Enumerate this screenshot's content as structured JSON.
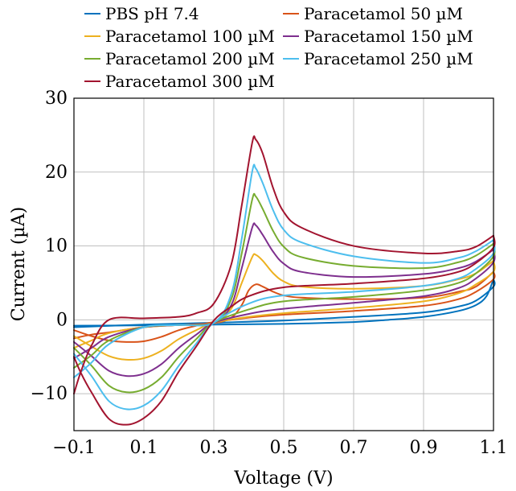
{
  "chart_data": {
    "type": "line",
    "title": "",
    "xlabel": "Voltage (V)",
    "ylabel": "Current (µA)",
    "xlim": [
      -0.1,
      1.1
    ],
    "ylim": [
      -15,
      30
    ],
    "x_ticks": [
      -0.1,
      0.1,
      0.3,
      0.5,
      0.7,
      0.9,
      1.1
    ],
    "x_tick_labels": [
      "−0.1",
      "0.1",
      "0.3",
      "0.5",
      "0.7",
      "0.9",
      "1.1"
    ],
    "y_ticks": [
      -10,
      0,
      10,
      20,
      30
    ],
    "y_tick_labels": [
      "−10",
      "0",
      "10",
      "20",
      "30"
    ],
    "grid": true,
    "legend_position": "top",
    "series": [
      {
        "name": "PBS pH 7.4",
        "color": "#0072BD",
        "forward": [
          [
            -0.1,
            -0.8
          ],
          [
            0.1,
            -0.75
          ],
          [
            0.3,
            -0.65
          ],
          [
            0.5,
            -0.55
          ],
          [
            0.7,
            -0.3
          ],
          [
            0.8,
            0.0
          ],
          [
            0.9,
            0.4
          ],
          [
            1.0,
            1.2
          ],
          [
            1.05,
            2.0
          ],
          [
            1.08,
            3.2
          ],
          [
            1.1,
            5.5
          ]
        ],
        "reverse": [
          [
            1.1,
            5.5
          ],
          [
            1.1,
            4.5
          ],
          [
            1.05,
            2.6
          ],
          [
            1.0,
            1.8
          ],
          [
            0.9,
            1.0
          ],
          [
            0.7,
            0.4
          ],
          [
            0.5,
            -0.1
          ],
          [
            0.3,
            -0.4
          ],
          [
            0.1,
            -0.65
          ],
          [
            -0.1,
            -1.0
          ]
        ]
      },
      {
        "name": "Paracetamol 50 µM",
        "color": "#D95319",
        "forward": [
          [
            -0.1,
            -2.5
          ],
          [
            -0.05,
            -2.0
          ],
          [
            0.0,
            -1.7
          ],
          [
            0.1,
            -1.0
          ],
          [
            0.2,
            -0.7
          ],
          [
            0.3,
            -0.45
          ],
          [
            0.35,
            0.3
          ],
          [
            0.38,
            2.0
          ],
          [
            0.4,
            4.0
          ],
          [
            0.42,
            4.8
          ],
          [
            0.44,
            4.5
          ],
          [
            0.47,
            3.8
          ],
          [
            0.5,
            3.3
          ],
          [
            0.55,
            3.0
          ],
          [
            0.7,
            2.8
          ],
          [
            0.9,
            3.0
          ],
          [
            1.0,
            3.8
          ],
          [
            1.05,
            4.5
          ],
          [
            1.1,
            6.5
          ]
        ],
        "reverse": [
          [
            1.1,
            6.5
          ],
          [
            1.1,
            5.5
          ],
          [
            1.05,
            3.8
          ],
          [
            1.0,
            2.8
          ],
          [
            0.9,
            1.9
          ],
          [
            0.7,
            1.2
          ],
          [
            0.5,
            0.7
          ],
          [
            0.4,
            0.3
          ],
          [
            0.3,
            -0.3
          ],
          [
            0.25,
            -0.8
          ],
          [
            0.2,
            -1.4
          ],
          [
            0.15,
            -2.3
          ],
          [
            0.1,
            -2.9
          ],
          [
            0.05,
            -3.0
          ],
          [
            0.0,
            -2.8
          ],
          [
            -0.05,
            -2.2
          ],
          [
            -0.1,
            -1.4
          ]
        ]
      },
      {
        "name": "Paracetamol 100 µM",
        "color": "#EDB120",
        "forward": [
          [
            -0.1,
            -3.8
          ],
          [
            -0.05,
            -2.8
          ],
          [
            0.0,
            -1.8
          ],
          [
            0.1,
            -1.0
          ],
          [
            0.2,
            -0.7
          ],
          [
            0.3,
            -0.4
          ],
          [
            0.35,
            1.5
          ],
          [
            0.38,
            5.0
          ],
          [
            0.41,
            8.5
          ],
          [
            0.42,
            8.8
          ],
          [
            0.44,
            8.0
          ],
          [
            0.47,
            6.3
          ],
          [
            0.5,
            5.2
          ],
          [
            0.55,
            4.5
          ],
          [
            0.7,
            4.2
          ],
          [
            0.9,
            4.6
          ],
          [
            1.0,
            5.5
          ],
          [
            1.05,
            6.3
          ],
          [
            1.1,
            8.0
          ]
        ],
        "reverse": [
          [
            1.1,
            8.0
          ],
          [
            1.1,
            6.5
          ],
          [
            1.05,
            4.8
          ],
          [
            1.0,
            3.6
          ],
          [
            0.9,
            2.5
          ],
          [
            0.7,
            1.6
          ],
          [
            0.5,
            0.9
          ],
          [
            0.4,
            0.4
          ],
          [
            0.3,
            -0.4
          ],
          [
            0.25,
            -1.4
          ],
          [
            0.2,
            -2.6
          ],
          [
            0.15,
            -4.2
          ],
          [
            0.1,
            -5.2
          ],
          [
            0.05,
            -5.4
          ],
          [
            0.0,
            -4.9
          ],
          [
            -0.05,
            -3.6
          ],
          [
            -0.1,
            -2.2
          ]
        ]
      },
      {
        "name": "Paracetamol 150 µM",
        "color": "#7E2F8E",
        "forward": [
          [
            -0.1,
            -5.2
          ],
          [
            -0.05,
            -3.8
          ],
          [
            0.0,
            -2.3
          ],
          [
            0.1,
            -1.0
          ],
          [
            0.2,
            -0.7
          ],
          [
            0.3,
            -0.4
          ],
          [
            0.35,
            2.0
          ],
          [
            0.38,
            7.0
          ],
          [
            0.41,
            12.5
          ],
          [
            0.42,
            12.8
          ],
          [
            0.44,
            11.5
          ],
          [
            0.47,
            9.2
          ],
          [
            0.5,
            7.6
          ],
          [
            0.55,
            6.5
          ],
          [
            0.7,
            5.8
          ],
          [
            0.9,
            6.2
          ],
          [
            1.0,
            7.0
          ],
          [
            1.05,
            7.9
          ],
          [
            1.1,
            9.5
          ]
        ],
        "reverse": [
          [
            1.1,
            9.5
          ],
          [
            1.1,
            7.8
          ],
          [
            1.05,
            5.6
          ],
          [
            1.0,
            4.3
          ],
          [
            0.9,
            3.2
          ],
          [
            0.7,
            2.3
          ],
          [
            0.5,
            1.5
          ],
          [
            0.4,
            0.8
          ],
          [
            0.3,
            -0.4
          ],
          [
            0.25,
            -2.0
          ],
          [
            0.2,
            -3.8
          ],
          [
            0.15,
            -6.0
          ],
          [
            0.1,
            -7.3
          ],
          [
            0.05,
            -7.6
          ],
          [
            0.0,
            -6.9
          ],
          [
            -0.05,
            -4.9
          ],
          [
            -0.1,
            -3.0
          ]
        ]
      },
      {
        "name": "Paracetamol 200 µM",
        "color": "#77AC30",
        "forward": [
          [
            -0.1,
            -6.5
          ],
          [
            -0.05,
            -4.8
          ],
          [
            0.0,
            -2.8
          ],
          [
            0.1,
            -1.0
          ],
          [
            0.2,
            -0.7
          ],
          [
            0.3,
            -0.4
          ],
          [
            0.35,
            2.8
          ],
          [
            0.38,
            9.0
          ],
          [
            0.41,
            16.3
          ],
          [
            0.42,
            16.7
          ],
          [
            0.44,
            15.0
          ],
          [
            0.47,
            12.0
          ],
          [
            0.5,
            9.9
          ],
          [
            0.55,
            8.5
          ],
          [
            0.7,
            7.3
          ],
          [
            0.9,
            7.0
          ],
          [
            1.0,
            7.8
          ],
          [
            1.05,
            8.7
          ],
          [
            1.1,
            10.3
          ]
        ],
        "reverse": [
          [
            1.1,
            10.3
          ],
          [
            1.1,
            8.6
          ],
          [
            1.05,
            6.3
          ],
          [
            1.0,
            5.0
          ],
          [
            0.9,
            4.0
          ],
          [
            0.7,
            3.1
          ],
          [
            0.5,
            2.5
          ],
          [
            0.4,
            1.4
          ],
          [
            0.3,
            -0.4
          ],
          [
            0.25,
            -2.6
          ],
          [
            0.2,
            -5.0
          ],
          [
            0.15,
            -7.8
          ],
          [
            0.1,
            -9.4
          ],
          [
            0.05,
            -9.8
          ],
          [
            0.0,
            -8.9
          ],
          [
            -0.05,
            -6.2
          ],
          [
            -0.1,
            -3.8
          ]
        ]
      },
      {
        "name": "Paracetamol 250 µM",
        "color": "#4DBEEE",
        "forward": [
          [
            -0.1,
            -7.8
          ],
          [
            -0.05,
            -5.8
          ],
          [
            0.0,
            -3.3
          ],
          [
            0.1,
            -1.0
          ],
          [
            0.2,
            -0.7
          ],
          [
            0.3,
            -0.4
          ],
          [
            0.35,
            3.5
          ],
          [
            0.38,
            11.0
          ],
          [
            0.41,
            20.1
          ],
          [
            0.42,
            20.5
          ],
          [
            0.44,
            18.5
          ],
          [
            0.47,
            14.8
          ],
          [
            0.5,
            12.2
          ],
          [
            0.55,
            10.5
          ],
          [
            0.7,
            8.6
          ],
          [
            0.9,
            7.7
          ],
          [
            1.0,
            8.4
          ],
          [
            1.05,
            9.3
          ],
          [
            1.1,
            10.8
          ]
        ],
        "reverse": [
          [
            1.1,
            10.8
          ],
          [
            1.1,
            9.0
          ],
          [
            1.05,
            6.9
          ],
          [
            1.0,
            5.6
          ],
          [
            0.9,
            4.6
          ],
          [
            0.7,
            3.8
          ],
          [
            0.5,
            3.3
          ],
          [
            0.4,
            2.2
          ],
          [
            0.3,
            -0.4
          ],
          [
            0.25,
            -3.2
          ],
          [
            0.2,
            -6.2
          ],
          [
            0.15,
            -9.6
          ],
          [
            0.1,
            -11.6
          ],
          [
            0.05,
            -12.1
          ],
          [
            0.0,
            -11.0
          ],
          [
            -0.05,
            -7.6
          ],
          [
            -0.1,
            -4.6
          ]
        ]
      },
      {
        "name": "Paracetamol 300 µM",
        "color": "#A2142F",
        "forward": [
          [
            -0.1,
            -10.0
          ],
          [
            -0.08,
            -7.0
          ],
          [
            -0.05,
            -3.5
          ],
          [
            0.0,
            0.0
          ],
          [
            0.1,
            0.2
          ],
          [
            0.2,
            0.4
          ],
          [
            0.25,
            0.9
          ],
          [
            0.3,
            2.2
          ],
          [
            0.35,
            7.5
          ],
          [
            0.38,
            15.5
          ],
          [
            0.41,
            24.0
          ],
          [
            0.42,
            24.4
          ],
          [
            0.44,
            22.5
          ],
          [
            0.47,
            17.8
          ],
          [
            0.5,
            14.6
          ],
          [
            0.55,
            12.5
          ],
          [
            0.7,
            10.0
          ],
          [
            0.9,
            9.0
          ],
          [
            1.0,
            9.3
          ],
          [
            1.05,
            9.9
          ],
          [
            1.1,
            11.4
          ]
        ],
        "reverse": [
          [
            1.1,
            11.4
          ],
          [
            1.1,
            9.8
          ],
          [
            1.05,
            7.7
          ],
          [
            1.0,
            6.5
          ],
          [
            0.9,
            5.6
          ],
          [
            0.7,
            4.9
          ],
          [
            0.5,
            4.4
          ],
          [
            0.4,
            3.2
          ],
          [
            0.35,
            1.8
          ],
          [
            0.3,
            -0.1
          ],
          [
            0.25,
            -3.6
          ],
          [
            0.2,
            -7.0
          ],
          [
            0.15,
            -11.0
          ],
          [
            0.1,
            -13.3
          ],
          [
            0.05,
            -14.2
          ],
          [
            0.0,
            -13.4
          ],
          [
            -0.05,
            -9.8
          ],
          [
            -0.08,
            -7.2
          ],
          [
            -0.1,
            -5.0
          ]
        ]
      }
    ]
  }
}
